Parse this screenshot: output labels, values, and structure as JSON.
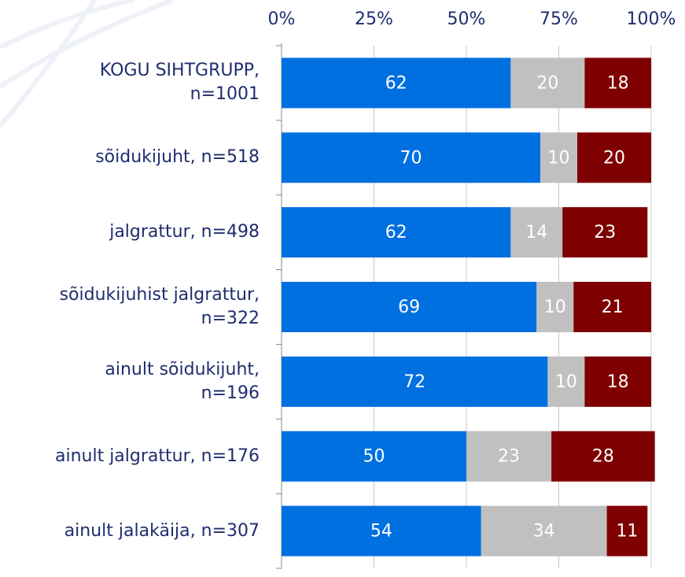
{
  "chart_data": {
    "type": "stacked-bar-horizontal",
    "categories": [
      "KOGU SIHTGRUPP,\nn=1001",
      "sõidukijuht, n=518",
      "jalgrattur, n=498",
      "sõidukijuhist jalgrattur,\nn=322",
      "ainult sõidukijuht,\nn=196",
      "ainult jalgrattur, n=176",
      "ainult jalakäija, n=307"
    ],
    "series": [
      {
        "color": "#0070e0",
        "values": [
          62,
          70,
          62,
          69,
          72,
          50,
          54
        ]
      },
      {
        "color": "#c0c0c0",
        "values": [
          20,
          10,
          14,
          10,
          10,
          23,
          34
        ]
      },
      {
        "color": "#7f0000",
        "values": [
          18,
          20,
          23,
          21,
          18,
          28,
          11
        ]
      }
    ],
    "xlim": [
      0,
      100
    ],
    "xticks": [
      {
        "value": 0,
        "label": "0%"
      },
      {
        "value": 25,
        "label": "25%"
      },
      {
        "value": 50,
        "label": "50%"
      },
      {
        "value": 75,
        "label": "75%"
      },
      {
        "value": 100,
        "label": "100%"
      }
    ],
    "grid": true
  }
}
